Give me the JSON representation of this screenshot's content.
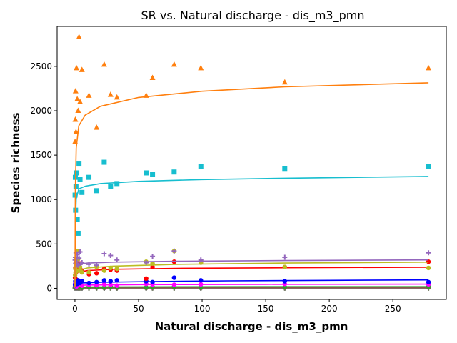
{
  "chart_data": {
    "type": "scatter",
    "title": "SR vs. Natural discharge - dis_m3_pmn",
    "xlabel": "Natural discharge - dis_m3_pmn",
    "ylabel": "Species richness",
    "xlim": [
      -14,
      292
    ],
    "ylim": [
      -125,
      2950
    ],
    "xticks": [
      0,
      50,
      100,
      150,
      200,
      250
    ],
    "yticks": [
      0,
      500,
      1000,
      1500,
      2000,
      2500
    ],
    "grid": false,
    "legend": "none",
    "x": [
      0.1,
      0.3,
      0.5,
      0.8,
      1.2,
      1.8,
      2.5,
      3.2,
      4.0,
      5.5,
      11,
      17,
      23,
      28,
      33,
      56,
      61,
      78,
      99,
      165,
      278
    ],
    "series": [
      {
        "color": "#ff7f0e",
        "marker": "triangle",
        "values": [
          1650,
          1900,
          2220,
          1760,
          2480,
          2130,
          2000,
          2830,
          2100,
          2460,
          2170,
          1810,
          2520,
          2180,
          2150,
          2170,
          2370,
          2520,
          2480,
          2320,
          2480
        ],
        "fit": [
          [
            0.05,
            15
          ],
          [
            0.3,
            1120
          ],
          [
            1,
            1580
          ],
          [
            3,
            1830
          ],
          [
            8,
            1950
          ],
          [
            20,
            2050
          ],
          [
            50,
            2150
          ],
          [
            100,
            2220
          ],
          [
            165,
            2270
          ],
          [
            278,
            2315
          ]
        ]
      },
      {
        "color": "#17becf",
        "marker": "square",
        "values": [
          1050,
          1250,
          880,
          1150,
          1300,
          780,
          620,
          1400,
          1230,
          1080,
          1250,
          1100,
          1420,
          1150,
          1180,
          1300,
          1280,
          1310,
          1370,
          1350,
          1370
        ],
        "fit": [
          [
            0.05,
            20
          ],
          [
            0.3,
            750
          ],
          [
            1,
            1010
          ],
          [
            3,
            1120
          ],
          [
            8,
            1150
          ],
          [
            20,
            1180
          ],
          [
            50,
            1205
          ],
          [
            100,
            1225
          ],
          [
            165,
            1240
          ],
          [
            278,
            1260
          ]
        ]
      },
      {
        "color": "#9467bd",
        "marker": "plus",
        "values": [
          320,
          350,
          280,
          400,
          300,
          380,
          260,
          340,
          410,
          290,
          270,
          260,
          390,
          370,
          320,
          290,
          360,
          420,
          320,
          350,
          400
        ],
        "fit": [
          [
            0.05,
            40
          ],
          [
            0.5,
            220
          ],
          [
            2,
            270
          ],
          [
            10,
            285
          ],
          [
            30,
            295
          ],
          [
            80,
            305
          ],
          [
            165,
            313
          ],
          [
            278,
            320
          ]
        ]
      },
      {
        "color": "#bcbd22",
        "marker": "circle",
        "values": [
          150,
          220,
          180,
          250,
          270,
          420,
          330,
          200,
          240,
          180,
          180,
          240,
          200,
          230,
          220,
          300,
          280,
          420,
          290,
          240,
          230
        ],
        "fit": [
          [
            0.05,
            30
          ],
          [
            0.5,
            150
          ],
          [
            2,
            200
          ],
          [
            10,
            230
          ],
          [
            30,
            250
          ],
          [
            80,
            270
          ],
          [
            165,
            285
          ],
          [
            278,
            295
          ]
        ]
      },
      {
        "color": "#ff0000",
        "marker": "circle",
        "values": [
          120,
          230,
          280,
          180,
          250,
          300,
          210,
          260,
          280,
          200,
          160,
          170,
          220,
          210,
          200,
          110,
          240,
          300,
          290,
          240,
          300
        ],
        "fit": [
          [
            0.05,
            20
          ],
          [
            0.5,
            140
          ],
          [
            2,
            180
          ],
          [
            10,
            200
          ],
          [
            30,
            215
          ],
          [
            80,
            225
          ],
          [
            165,
            232
          ],
          [
            278,
            238
          ]
        ]
      },
      {
        "color": "#0000ff",
        "marker": "circle",
        "values": [
          40,
          80,
          60,
          100,
          70,
          50,
          90,
          70,
          60,
          80,
          60,
          70,
          90,
          80,
          90,
          80,
          70,
          120,
          90,
          80,
          70
        ],
        "fit": [
          [
            0.05,
            10
          ],
          [
            1,
            50
          ],
          [
            5,
            60
          ],
          [
            20,
            68
          ],
          [
            60,
            76
          ],
          [
            120,
            84
          ],
          [
            200,
            90
          ],
          [
            278,
            95
          ]
        ]
      },
      {
        "color": "#ff00ff",
        "marker": "circle",
        "values": [
          50,
          30,
          40,
          60,
          20,
          45,
          35,
          50,
          55,
          30,
          40,
          35,
          45,
          40,
          30,
          50,
          45,
          40,
          45,
          50,
          45
        ],
        "fit": [
          [
            0.05,
            10
          ],
          [
            1,
            30
          ],
          [
            10,
            38
          ],
          [
            50,
            42
          ],
          [
            150,
            45
          ],
          [
            278,
            47
          ]
        ]
      },
      {
        "color": "#2ca02c",
        "marker": "circle",
        "values": [
          20,
          10,
          30,
          15,
          25,
          10,
          20,
          15,
          25,
          10,
          20,
          15,
          10,
          20,
          15,
          10,
          15,
          20,
          10,
          15,
          20
        ],
        "fit": [
          [
            0.05,
            5
          ],
          [
            1,
            12
          ],
          [
            10,
            15
          ],
          [
            50,
            17
          ],
          [
            150,
            18
          ],
          [
            278,
            18
          ]
        ]
      },
      {
        "color": "#8c564b",
        "marker": "circle",
        "values": [
          10,
          5,
          15,
          8,
          12,
          5,
          10,
          6,
          12,
          5,
          10,
          8,
          5,
          10,
          6,
          5,
          8,
          10,
          5,
          8,
          10
        ],
        "fit": [
          [
            0.05,
            2
          ],
          [
            1,
            5
          ],
          [
            10,
            6
          ],
          [
            50,
            6
          ],
          [
            150,
            6
          ],
          [
            278,
            6
          ]
        ]
      },
      {
        "color": "#7f7f7f",
        "marker": "plus",
        "values": [
          5,
          0,
          8,
          3,
          6,
          0,
          4,
          2,
          6,
          0,
          4,
          3,
          0,
          4,
          2,
          0,
          3,
          4,
          0,
          3,
          4
        ],
        "fit": [
          [
            0.05,
            1
          ],
          [
            10,
            2
          ],
          [
            100,
            2
          ],
          [
            278,
            2
          ]
        ]
      },
      {
        "color": "#556b2f",
        "marker": "plus",
        "values": [
          2,
          0,
          3,
          1,
          2,
          0,
          1,
          0,
          2,
          0,
          1,
          1,
          0,
          1,
          0,
          0,
          1,
          1,
          0,
          1,
          1
        ],
        "fit": [
          [
            0.05,
            0
          ],
          [
            10,
            1
          ],
          [
            100,
            1
          ],
          [
            278,
            1
          ]
        ]
      }
    ]
  }
}
